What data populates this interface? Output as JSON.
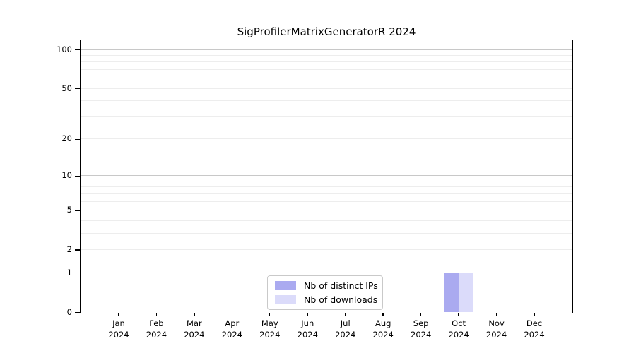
{
  "chart_data": {
    "type": "bar",
    "title": "SigProfilerMatrixGeneratorR 2024",
    "x_categories": [
      {
        "month": "Jan",
        "year": "2024"
      },
      {
        "month": "Feb",
        "year": "2024"
      },
      {
        "month": "Mar",
        "year": "2024"
      },
      {
        "month": "Apr",
        "year": "2024"
      },
      {
        "month": "May",
        "year": "2024"
      },
      {
        "month": "Jun",
        "year": "2024"
      },
      {
        "month": "Jul",
        "year": "2024"
      },
      {
        "month": "Aug",
        "year": "2024"
      },
      {
        "month": "Sep",
        "year": "2024"
      },
      {
        "month": "Oct",
        "year": "2024"
      },
      {
        "month": "Nov",
        "year": "2024"
      },
      {
        "month": "Dec",
        "year": "2024"
      }
    ],
    "series": [
      {
        "name": "Nb of distinct IPs",
        "color": "#aaaaf0",
        "values": [
          0,
          0,
          0,
          0,
          0,
          0,
          0,
          0,
          0,
          1,
          0,
          0
        ]
      },
      {
        "name": "Nb of downloads",
        "color": "#dbdbfa",
        "values": [
          0,
          0,
          0,
          0,
          0,
          0,
          0,
          0,
          0,
          1,
          0,
          0
        ]
      }
    ],
    "y_scale": "log1p",
    "y_axis_ticks": [
      0,
      1,
      2,
      5,
      10,
      20,
      50,
      100
    ],
    "y_display_max": 118,
    "grid_major_values": [
      1,
      10,
      100
    ],
    "grid_minor_values": [
      2,
      3,
      4,
      5,
      6,
      7,
      8,
      9,
      20,
      30,
      40,
      50,
      60,
      70,
      80,
      90
    ],
    "xlabel": "",
    "ylabel": "",
    "grid": true,
    "legend_position": "bottom-center"
  },
  "colors": {
    "background": "#ffffff",
    "spine": "#000000",
    "grid_major": "#c8c8c8",
    "grid_minor": "#ededed",
    "bar_distinct_ips": "#aaaaf0",
    "bar_downloads": "#dbdbfa",
    "text": "#000000"
  }
}
